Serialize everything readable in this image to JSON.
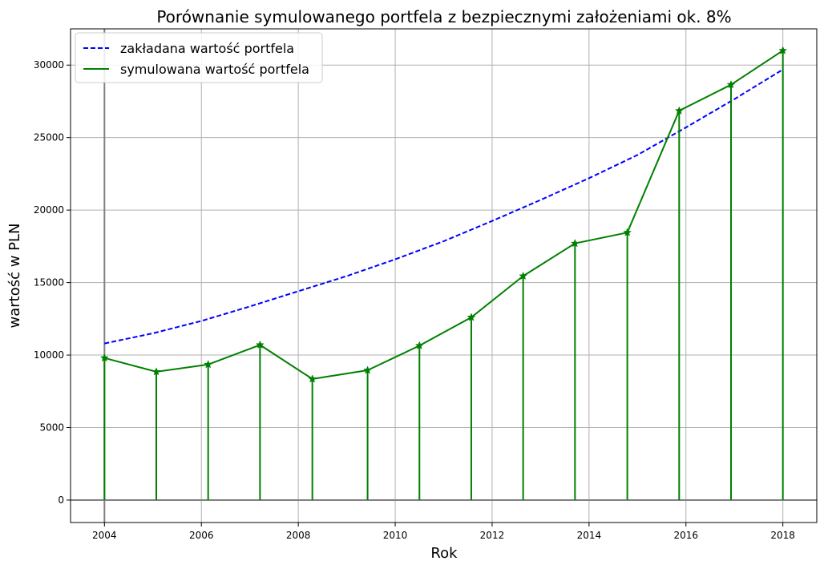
{
  "chart_data": {
    "type": "line",
    "title": "Porównanie symulowanego portfela z bezpiecznymi założeniami ok. 8%",
    "xlabel": "Rok",
    "ylabel": "wartość w PLN",
    "xlim": [
      2003.3,
      2018.7
    ],
    "ylim": [
      -1550,
      32500
    ],
    "x_ticks": [
      2004,
      2006,
      2008,
      2010,
      2012,
      2014,
      2016,
      2018
    ],
    "y_ticks": [
      0,
      5000,
      10000,
      15000,
      20000,
      25000,
      30000
    ],
    "grid": true,
    "legend_position": "top-left",
    "series": [
      {
        "name": "zakładana wartość portfela",
        "style": "dashed",
        "color": "#0000ff",
        "points": [
          {
            "x": 2004.0,
            "y": 10800
          },
          {
            "x": 2005.0,
            "y": 11500
          },
          {
            "x": 2006.0,
            "y": 12350
          },
          {
            "x": 2007.0,
            "y": 13350
          },
          {
            "x": 2008.0,
            "y": 14400
          },
          {
            "x": 2009.0,
            "y": 15450
          },
          {
            "x": 2010.0,
            "y": 16600
          },
          {
            "x": 2011.0,
            "y": 17850
          },
          {
            "x": 2012.0,
            "y": 19250
          },
          {
            "x": 2013.0,
            "y": 20700
          },
          {
            "x": 2014.0,
            "y": 22200
          },
          {
            "x": 2015.0,
            "y": 23800
          },
          {
            "x": 2016.0,
            "y": 25700
          },
          {
            "x": 2017.0,
            "y": 27650
          },
          {
            "x": 2018.0,
            "y": 29700
          }
        ]
      },
      {
        "name": "symulowana wartość portfela",
        "style": "solid",
        "marker": "star",
        "stems": true,
        "color": "#008000",
        "points": [
          {
            "x": 2004.0,
            "y": 9800
          },
          {
            "x": 2005.07,
            "y": 8850
          },
          {
            "x": 2006.14,
            "y": 9350
          },
          {
            "x": 2007.21,
            "y": 10700
          },
          {
            "x": 2008.29,
            "y": 8350
          },
          {
            "x": 2009.43,
            "y": 8950
          },
          {
            "x": 2010.5,
            "y": 10650
          },
          {
            "x": 2011.57,
            "y": 12600
          },
          {
            "x": 2012.64,
            "y": 15450
          },
          {
            "x": 2013.71,
            "y": 17700
          },
          {
            "x": 2014.79,
            "y": 18450
          },
          {
            "x": 2015.86,
            "y": 26850
          },
          {
            "x": 2016.93,
            "y": 28650
          },
          {
            "x": 2018.0,
            "y": 31000
          }
        ]
      }
    ]
  }
}
